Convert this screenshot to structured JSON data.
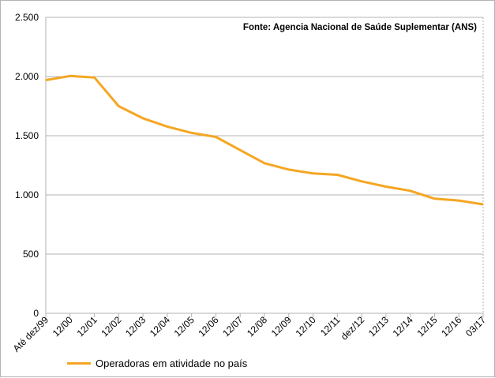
{
  "chart_data": {
    "type": "line",
    "title": "",
    "xlabel": "",
    "ylabel": "",
    "source_note": "Fonte: Agencia Nacional de Saúde Suplementar (ANS)",
    "categories": [
      "Até dez/99",
      "12/00",
      "12/01",
      "12/02",
      "12/03",
      "12/04",
      "12/05",
      "12/06",
      "12/07",
      "12/08",
      "12/09",
      "12/10",
      "12/11",
      "dez/12",
      "12/13",
      "12/14",
      "12/15",
      "12/16",
      "03/17"
    ],
    "series": [
      {
        "name": "Operadoras em atividade no país",
        "color": "#f5a623",
        "values": [
          1970,
          2005,
          1992,
          1750,
          1647,
          1577,
          1524,
          1490,
          1379,
          1268,
          1214,
          1181,
          1170,
          1115,
          1070,
          1035,
          968,
          953,
          920
        ]
      }
    ],
    "ylim": [
      0,
      2500
    ],
    "yticks": [
      0,
      500,
      1000,
      1500,
      2000,
      2500
    ],
    "ytick_labels": [
      "0",
      "500",
      "1.000",
      "1.500",
      "2.000",
      "2.500"
    ],
    "grid": true,
    "legend_position": "bottom-left"
  }
}
